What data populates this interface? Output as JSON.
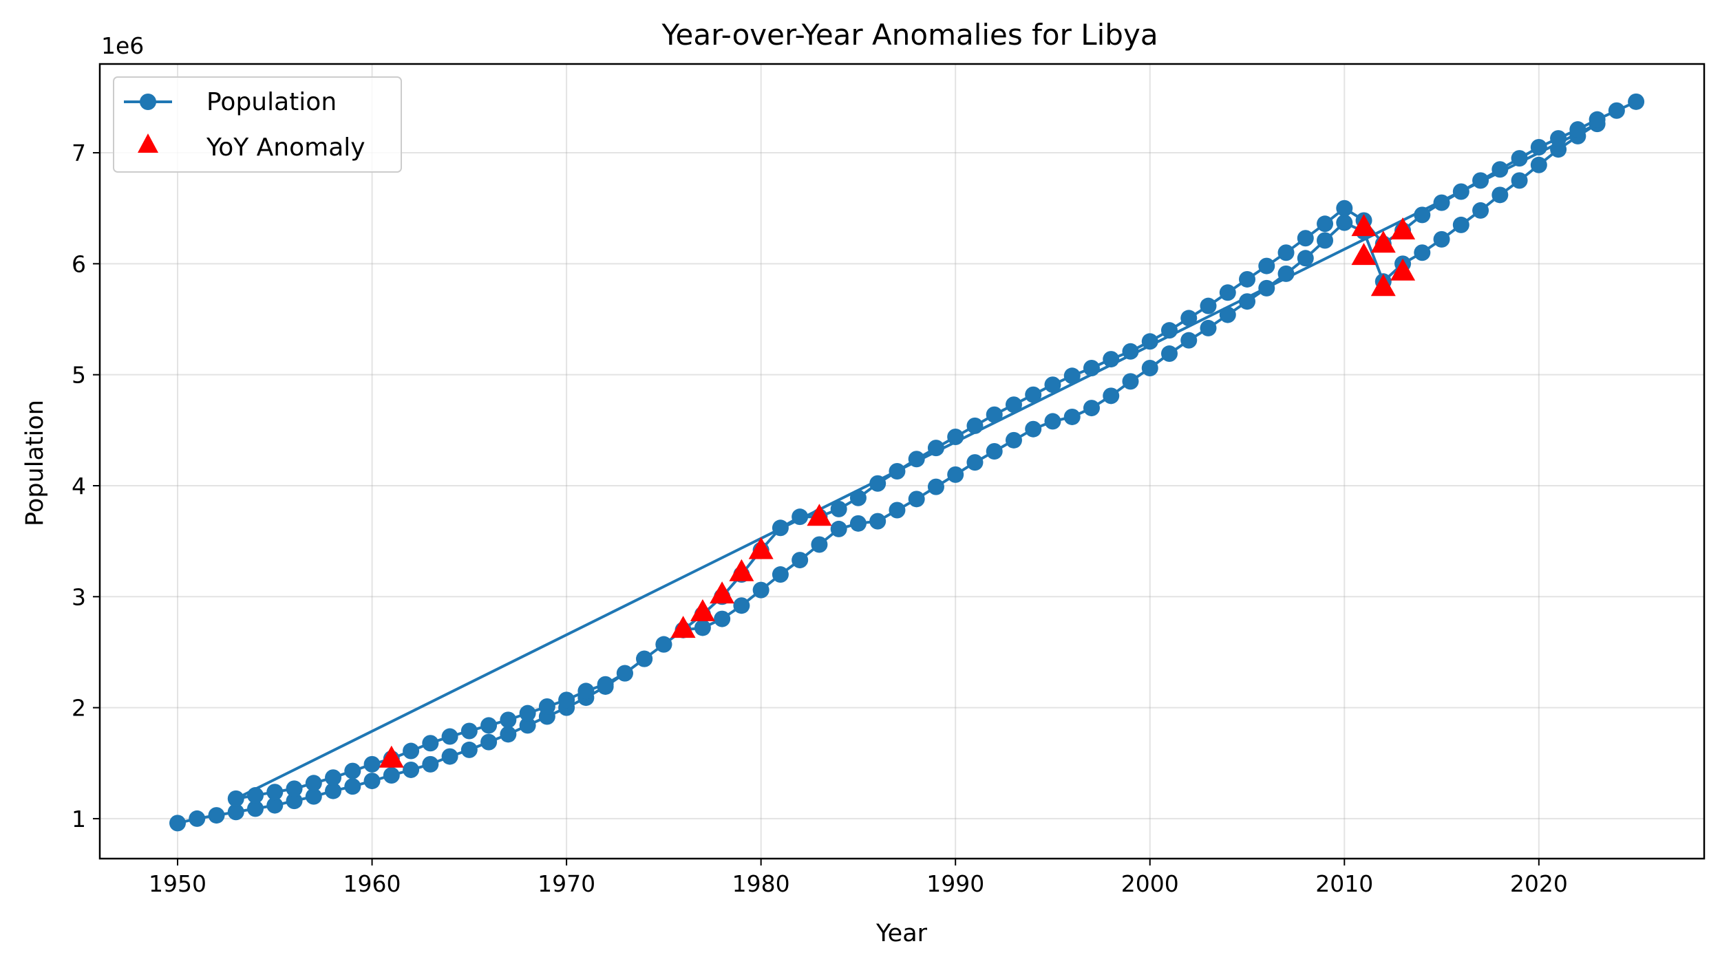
{
  "chart_data": {
    "type": "line",
    "title": "Year-over-Year Anomalies for Libya",
    "xlabel": "Year",
    "ylabel": "Population",
    "y_offset_label": "1e6",
    "xlim": [
      1946,
      2028.5
    ],
    "ylim": [
      640000,
      7800000
    ],
    "x_ticks": [
      1950,
      1960,
      1970,
      1980,
      1990,
      2000,
      2010,
      2020
    ],
    "y_ticks": [
      1000000,
      2000000,
      3000000,
      4000000,
      5000000,
      6000000,
      7000000
    ],
    "y_tick_labels": [
      "1",
      "2",
      "3",
      "4",
      "5",
      "6",
      "7"
    ],
    "grid": true,
    "legend_position": "top-left",
    "colors": {
      "population": "#1f77b4",
      "anomaly": "#ff0000"
    },
    "series": [
      {
        "name": "Population",
        "style": "line-marker",
        "x": [
          1950,
          1951,
          1952,
          1953,
          1954,
          1955,
          1956,
          1957,
          1958,
          1959,
          1960,
          1961,
          1962,
          1963,
          1964,
          1965,
          1966,
          1967,
          1968,
          1969,
          1970,
          1971,
          1972,
          1973,
          1974,
          1975,
          1976,
          1977,
          1978,
          1979,
          1980,
          1981,
          1982,
          1983,
          1984,
          1985,
          1986,
          1987,
          1988,
          1989,
          1990,
          1991,
          1992,
          1993,
          1994,
          1995,
          1996,
          1997,
          1998,
          1999,
          2000,
          2001,
          2002,
          2003,
          2004,
          2005,
          2006,
          2007,
          2008,
          2009,
          2010,
          2011,
          2012,
          2013,
          2014,
          2015,
          2016,
          2017,
          2018,
          2019,
          2020,
          2021,
          2022,
          2023,
          1953,
          1954,
          1955,
          1956,
          1957,
          1958,
          1959,
          1960,
          1961,
          1962,
          1963,
          1964,
          1965,
          1966,
          1967,
          1968,
          1969,
          1970,
          1971,
          1972,
          1973,
          1974,
          1975,
          1976,
          1977,
          1978,
          1979,
          1980,
          1981,
          1982,
          1983,
          1984,
          1985,
          1986,
          1987,
          1988,
          1989,
          1990,
          1991,
          1992,
          1993,
          1994,
          1995,
          1996,
          1997,
          1998,
          1999,
          2000,
          2001,
          2002,
          2003,
          2004,
          2005,
          2006,
          2007,
          2008,
          2009,
          2010,
          2011,
          2012,
          2013,
          2014,
          2015,
          2016,
          2017,
          2018,
          2019,
          2020,
          2021,
          2022,
          2023,
          2024,
          2025
        ],
        "y": [
          960000,
          1000000,
          1030000,
          1060000,
          1090000,
          1120000,
          1160000,
          1200000,
          1250000,
          1290000,
          1340000,
          1390000,
          1440000,
          1490000,
          1560000,
          1620000,
          1690000,
          1760000,
          1840000,
          1920000,
          2000000,
          2090000,
          2190000,
          2310000,
          2440000,
          2570000,
          2700000,
          2720000,
          2800000,
          2920000,
          3060000,
          3200000,
          3330000,
          3470000,
          3610000,
          3660000,
          3680000,
          3780000,
          3880000,
          3990000,
          4100000,
          4210000,
          4310000,
          4410000,
          4510000,
          4580000,
          4620000,
          4700000,
          4810000,
          4940000,
          5060000,
          5190000,
          5310000,
          5420000,
          5540000,
          5660000,
          5780000,
          5910000,
          6050000,
          6210000,
          6370000,
          6290000,
          5840000,
          6000000,
          6100000,
          6220000,
          6350000,
          6480000,
          6620000,
          6750000,
          6890000,
          7030000,
          7150000,
          7260000,
          1180000,
          1210000,
          1240000,
          1270000,
          1320000,
          1370000,
          1430000,
          1490000,
          1540000,
          1610000,
          1680000,
          1740000,
          1790000,
          1840000,
          1890000,
          1950000,
          2010000,
          2070000,
          2150000,
          2210000,
          2310000,
          2440000,
          2570000,
          2700000,
          2840000,
          3000000,
          3200000,
          3420000,
          3620000,
          3720000,
          3720000,
          3790000,
          3890000,
          4020000,
          4130000,
          4240000,
          4340000,
          4440000,
          4540000,
          4640000,
          4730000,
          4820000,
          4910000,
          4990000,
          5060000,
          5140000,
          5210000,
          5300000,
          5400000,
          5510000,
          5620000,
          5740000,
          5860000,
          5980000,
          6100000,
          6230000,
          6360000,
          6500000,
          6390000,
          6180000,
          6300000,
          6440000,
          6550000,
          6650000,
          6750000,
          6850000,
          6950000,
          7050000,
          7130000,
          7210000,
          7300000,
          7380000,
          7460000
        ]
      },
      {
        "name": "YoY Anomaly",
        "style": "marker",
        "marker": "triangle-up",
        "x": [
          1961,
          1976,
          1977,
          1978,
          1979,
          1980,
          1983,
          2011,
          2011,
          2012,
          2012,
          2013,
          2013
        ],
        "y": [
          1540000,
          2710000,
          2860000,
          3020000,
          3220000,
          3420000,
          3720000,
          6330000,
          6070000,
          6180000,
          5790000,
          6300000,
          5930000
        ]
      }
    ]
  }
}
